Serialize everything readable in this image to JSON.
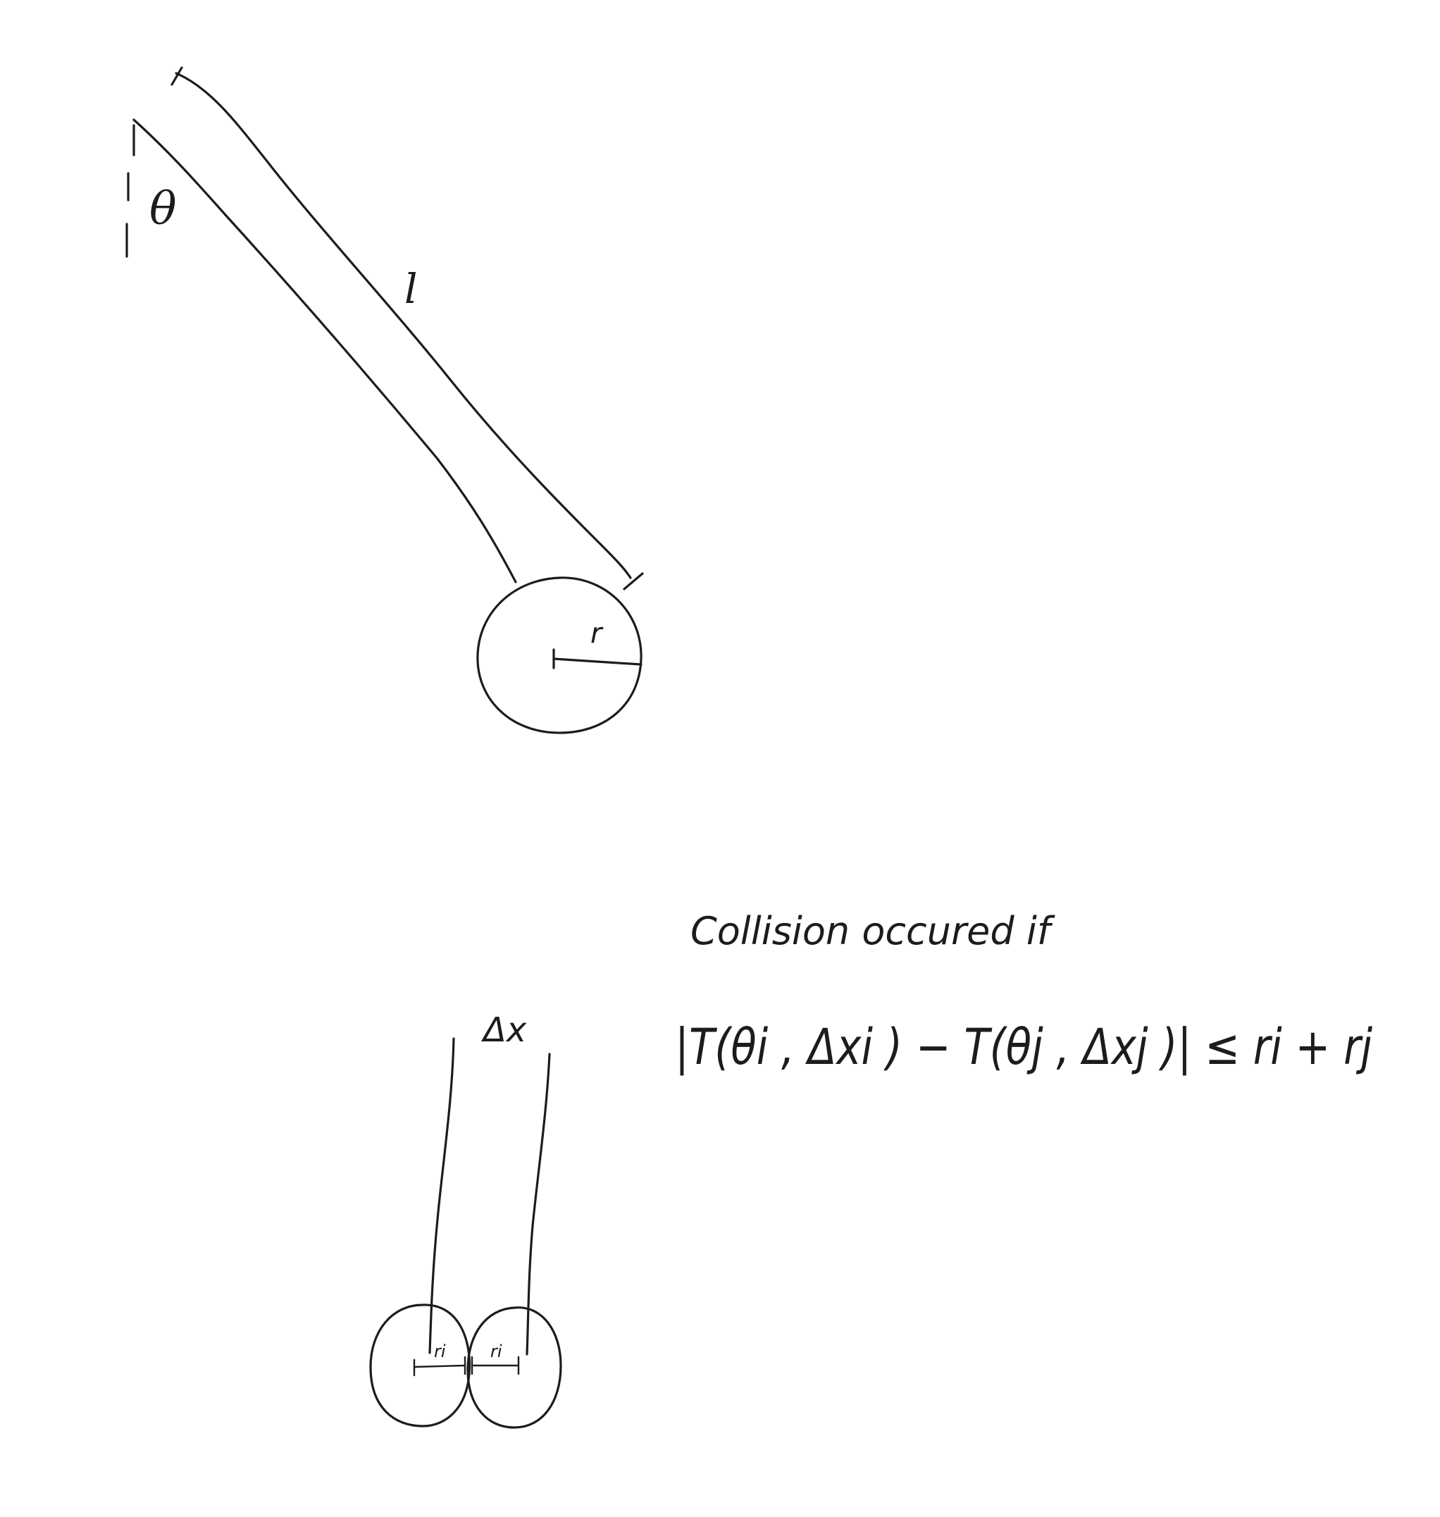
{
  "pendulum": {
    "angle_label": "θ",
    "length_label": "l",
    "radius_label": "r"
  },
  "collision": {
    "offset_label": "Δx",
    "radius_left_label": "ri",
    "radius_right_label": "ri",
    "caption": "Collision occured if",
    "condition": "|T(θi , Δxi ) − T(θj , Δxj )| ≤ ri + rj"
  }
}
